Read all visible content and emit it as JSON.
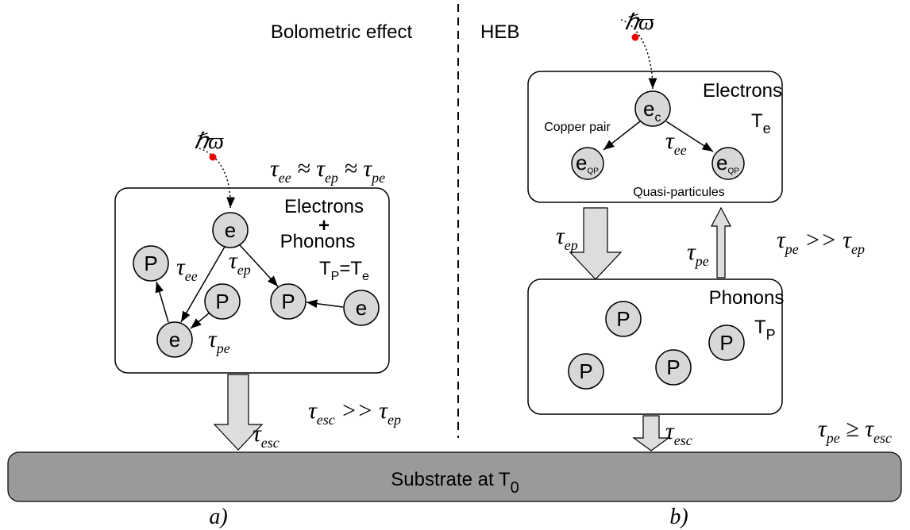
{
  "panel_a": {
    "header": "Bolometric effect",
    "photon": "ℏϖ",
    "relation": [
      {
        "main": "τ",
        "sub": "ee"
      },
      {
        "main": " ≈ τ",
        "sub": "ep"
      },
      {
        "main": " ≈ τ",
        "sub": "pe"
      }
    ],
    "box": {
      "title": "Electrons",
      "plus": "+",
      "subtitle": "Phonons",
      "temperature": [
        {
          "main": "T",
          "sub": "P"
        },
        {
          "main": "=T",
          "sub": "e"
        }
      ]
    },
    "particles": [
      "e",
      "P",
      "P",
      "P",
      "e",
      "e"
    ],
    "tau_ee": [
      {
        "main": "τ",
        "sub": "ee"
      }
    ],
    "tau_ep": [
      {
        "main": "τ",
        "sub": "ep"
      }
    ],
    "tau_pe": [
      {
        "main": "τ",
        "sub": "pe"
      }
    ],
    "tau_esc": [
      {
        "main": "τ",
        "sub": "esc"
      }
    ],
    "escape_relation": [
      {
        "main": "τ",
        "sub": "esc"
      },
      {
        "main": " >> τ",
        "sub": "ep"
      }
    ],
    "caption": "a)"
  },
  "panel_b": {
    "header": "HEB",
    "photon": "ℏϖ",
    "electrons_box": {
      "title": "Electrons",
      "temperature": [
        {
          "main": "T",
          "sub": "e"
        }
      ],
      "pair_label": "Copper pair",
      "pair": [
        {
          "main": "e",
          "sub": "c"
        }
      ],
      "quasi": [
        [
          {
            "main": "e",
            "sub": "QP"
          }
        ],
        [
          {
            "main": "e",
            "sub": "QP"
          }
        ]
      ],
      "quasi_label": "Quasi-particules",
      "tau_ee": [
        {
          "main": "τ",
          "sub": "ee"
        }
      ]
    },
    "tau_ep": [
      {
        "main": "τ",
        "sub": "ep"
      }
    ],
    "tau_pe": [
      {
        "main": "τ",
        "sub": "pe"
      }
    ],
    "relation": [
      {
        "main": "τ",
        "sub": "pe"
      },
      {
        "main": " >> τ",
        "sub": "ep"
      }
    ],
    "phonons_box": {
      "title": "Phonons",
      "temperature": [
        {
          "main": "T",
          "sub": "P"
        }
      ],
      "particles": [
        "P",
        "P",
        "P",
        "P"
      ]
    },
    "tau_esc": [
      {
        "main": "τ",
        "sub": "esc"
      }
    ],
    "escape_relation": [
      {
        "main": "τ",
        "sub": "pe"
      },
      {
        "main": " ≥ τ",
        "sub": "esc"
      }
    ],
    "caption": "b)"
  },
  "substrate": [
    {
      "main": "Substrate at T",
      "sub": "0"
    }
  ]
}
